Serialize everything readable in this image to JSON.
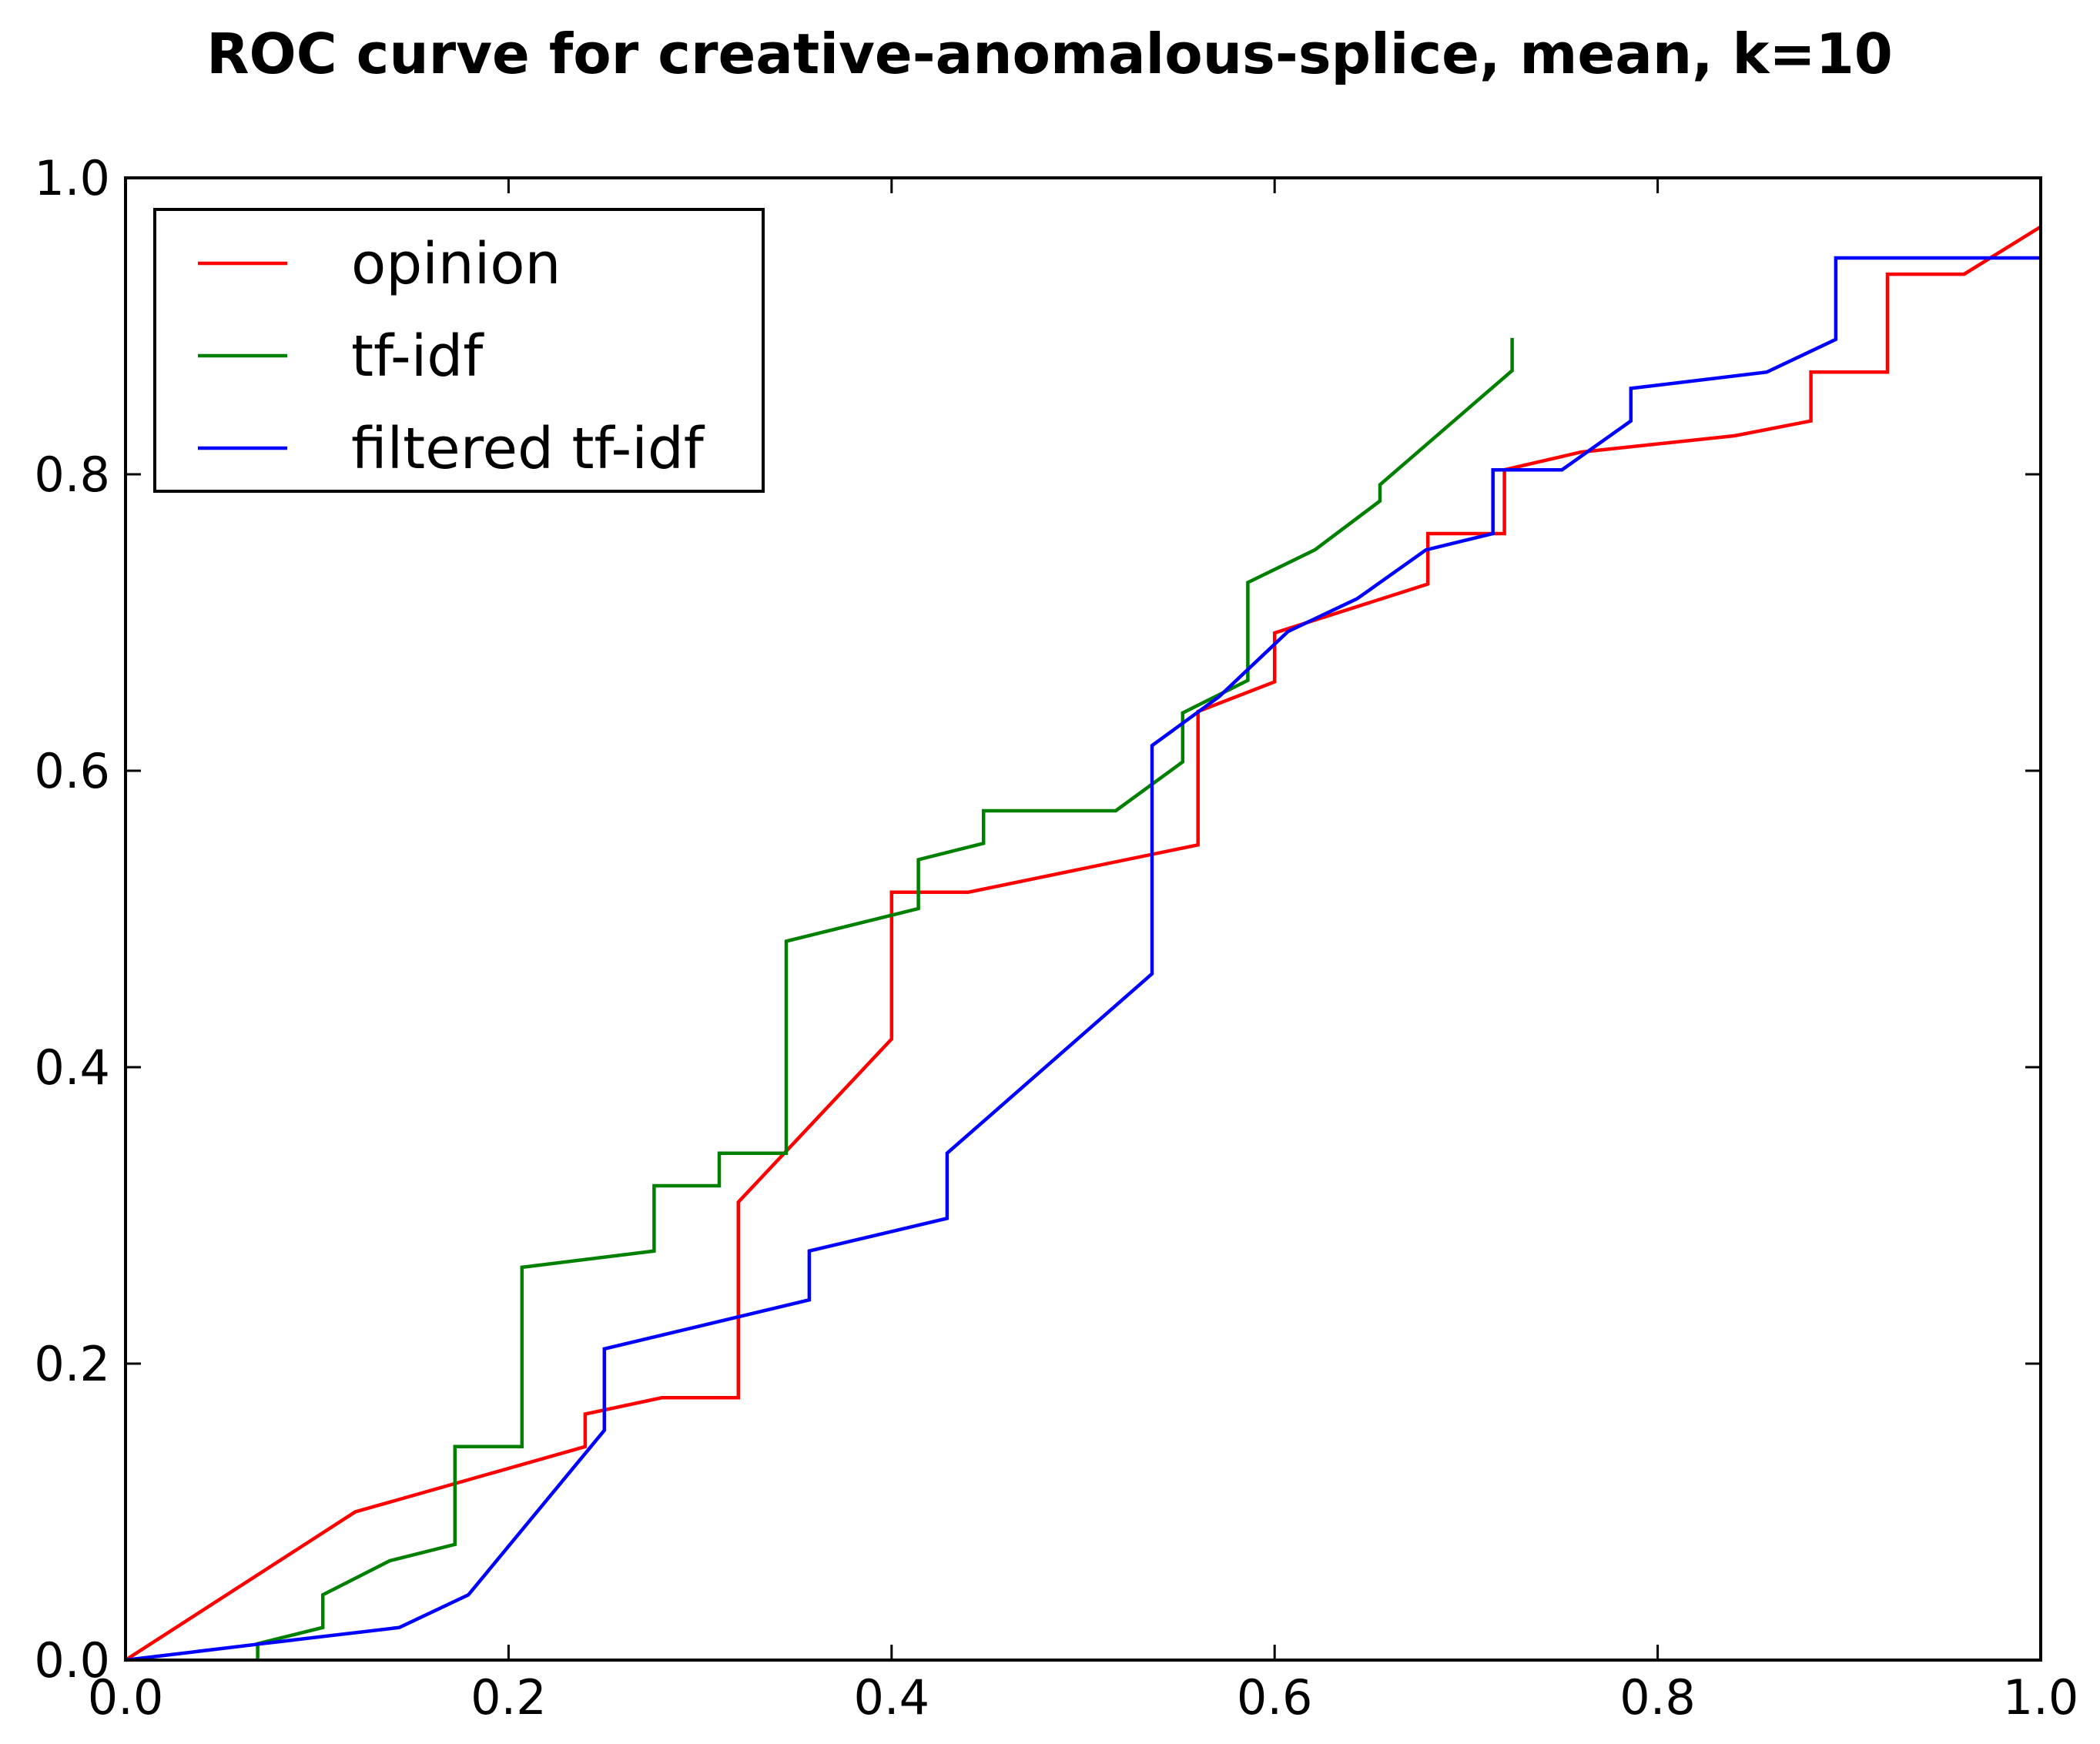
{
  "chart_data": {
    "type": "line",
    "title": "ROC curve for creative-anomalous-splice, mean, k=10",
    "xlabel": "",
    "ylabel": "",
    "xlim": [
      0.0,
      1.0
    ],
    "ylim": [
      0.0,
      1.0
    ],
    "x_ticks": [
      "0.0",
      "0.2",
      "0.4",
      "0.6",
      "0.8",
      "1.0"
    ],
    "y_ticks": [
      "0.0",
      "0.2",
      "0.4",
      "0.6",
      "0.8",
      "1.0"
    ],
    "grid": false,
    "legend_position": "top-left",
    "series": [
      {
        "name": "opinion",
        "color": "#ff0000",
        "points": [
          [
            0.0,
            0.0
          ],
          [
            0.12,
            0.1
          ],
          [
            0.24,
            0.144
          ],
          [
            0.24,
            0.166
          ],
          [
            0.28,
            0.177
          ],
          [
            0.32,
            0.177
          ],
          [
            0.32,
            0.309
          ],
          [
            0.4,
            0.419
          ],
          [
            0.4,
            0.518
          ],
          [
            0.44,
            0.518
          ],
          [
            0.56,
            0.55
          ],
          [
            0.56,
            0.64
          ],
          [
            0.6,
            0.66
          ],
          [
            0.6,
            0.693
          ],
          [
            0.68,
            0.726
          ],
          [
            0.68,
            0.76
          ],
          [
            0.72,
            0.76
          ],
          [
            0.72,
            0.803
          ],
          [
            0.76,
            0.815
          ],
          [
            0.84,
            0.826
          ],
          [
            0.88,
            0.836
          ],
          [
            0.88,
            0.869
          ],
          [
            0.92,
            0.869
          ],
          [
            0.92,
            0.935
          ],
          [
            0.96,
            0.935
          ],
          [
            1.0,
            0.967
          ]
        ]
      },
      {
        "name": "tf-idf",
        "color": "#008000",
        "points": [
          [
            0.069,
            0.0
          ],
          [
            0.069,
            0.011
          ],
          [
            0.103,
            0.022
          ],
          [
            0.103,
            0.044
          ],
          [
            0.138,
            0.067
          ],
          [
            0.172,
            0.078
          ],
          [
            0.172,
            0.144
          ],
          [
            0.207,
            0.144
          ],
          [
            0.207,
            0.265
          ],
          [
            0.276,
            0.276
          ],
          [
            0.276,
            0.32
          ],
          [
            0.31,
            0.32
          ],
          [
            0.31,
            0.342
          ],
          [
            0.345,
            0.342
          ],
          [
            0.345,
            0.485
          ],
          [
            0.414,
            0.507
          ],
          [
            0.414,
            0.54
          ],
          [
            0.448,
            0.551
          ],
          [
            0.448,
            0.573
          ],
          [
            0.517,
            0.573
          ],
          [
            0.552,
            0.606
          ],
          [
            0.552,
            0.639
          ],
          [
            0.586,
            0.661
          ],
          [
            0.586,
            0.727
          ],
          [
            0.621,
            0.749
          ],
          [
            0.655,
            0.782
          ],
          [
            0.655,
            0.793
          ],
          [
            0.724,
            0.87
          ],
          [
            0.724,
            0.892
          ]
        ]
      },
      {
        "name": "filtered tf-idf",
        "color": "#0000ff",
        "points": [
          [
            0.0,
            0.0
          ],
          [
            0.071,
            0.011
          ],
          [
            0.143,
            0.022
          ],
          [
            0.179,
            0.044
          ],
          [
            0.25,
            0.155
          ],
          [
            0.25,
            0.21
          ],
          [
            0.357,
            0.243
          ],
          [
            0.357,
            0.276
          ],
          [
            0.429,
            0.298
          ],
          [
            0.429,
            0.342
          ],
          [
            0.536,
            0.463
          ],
          [
            0.536,
            0.617
          ],
          [
            0.571,
            0.65
          ],
          [
            0.607,
            0.694
          ],
          [
            0.643,
            0.716
          ],
          [
            0.679,
            0.749
          ],
          [
            0.714,
            0.76
          ],
          [
            0.714,
            0.803
          ],
          [
            0.75,
            0.803
          ],
          [
            0.786,
            0.836
          ],
          [
            0.786,
            0.858
          ],
          [
            0.857,
            0.869
          ],
          [
            0.893,
            0.891
          ],
          [
            0.893,
            0.946
          ],
          [
            1.0,
            0.946
          ]
        ]
      }
    ]
  }
}
